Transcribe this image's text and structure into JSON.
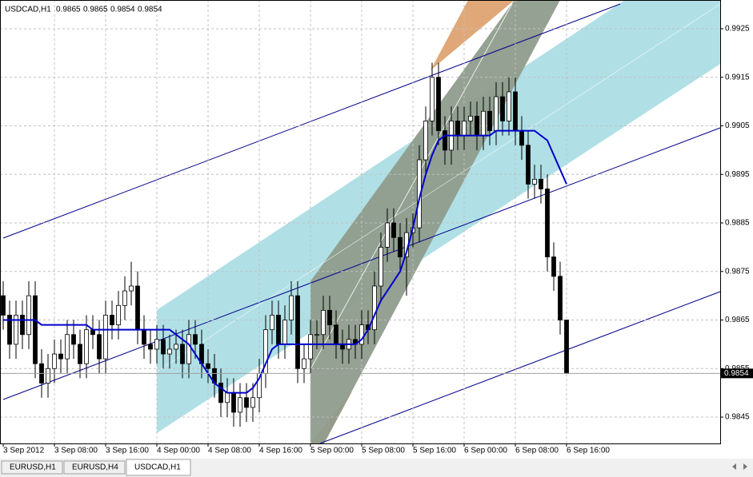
{
  "chart_data": {
    "type": "candlestick",
    "title": "USDCAD,H1",
    "categories": [
      "3 Sep 2012",
      null,
      null,
      null,
      null,
      null,
      null,
      null,
      "3 Sep 08:00",
      null,
      null,
      null,
      null,
      null,
      null,
      null,
      "3 Sep 16:00",
      null,
      null,
      null,
      null,
      null,
      null,
      null,
      "4 Sep 00:00",
      null,
      null,
      null,
      null,
      null,
      null,
      null,
      "4 Sep 08:00",
      null,
      null,
      null,
      null,
      null,
      null,
      null,
      "4 Sep 16:00",
      null,
      null,
      null,
      null,
      null,
      null,
      null,
      "5 Sep 00:00",
      null,
      null,
      null,
      null,
      null,
      null,
      null,
      "5 Sep 08:00",
      null,
      null,
      null,
      null,
      null,
      null,
      null,
      "5 Sep 16:00",
      null,
      null,
      null,
      null,
      null,
      null,
      null,
      "6 Sep 00:00",
      null,
      null,
      null,
      null,
      null,
      null,
      null,
      "6 Sep 08:00",
      null,
      null,
      null,
      null,
      null,
      null,
      null,
      "6 Sep 16:00"
    ],
    "open": [
      0.987,
      0.9866,
      0.986,
      0.9866,
      0.9862,
      0.987,
      0.9856,
      0.9852,
      0.9855,
      0.9858,
      0.9857,
      0.9862,
      0.986,
      0.9856,
      0.9863,
      0.9862,
      0.9857,
      0.9866,
      0.9864,
      0.9868,
      0.9871,
      0.9872,
      0.9863,
      0.986,
      0.9859,
      0.9861,
      0.9858,
      0.9859,
      0.986,
      0.9856,
      0.9862,
      0.986,
      0.9856,
      0.9855,
      0.9852,
      0.9848,
      0.985,
      0.9846,
      0.9849,
      0.9847,
      0.9849,
      0.9854,
      0.9863,
      0.9866,
      0.986,
      0.9865,
      0.987,
      0.9855,
      0.9857,
      0.9862,
      0.9862,
      0.9867,
      0.9864,
      0.986,
      0.9859,
      0.9861,
      0.986,
      0.9864,
      0.9863,
      0.9872,
      0.988,
      0.9885,
      0.9882,
      0.9878,
      0.9883,
      0.9884,
      0.9898,
      0.9906,
      0.9915,
      0.9904,
      0.99,
      0.9906,
      0.9903,
      0.9906,
      0.9907,
      0.9903,
      0.9908,
      0.9904,
      0.9911,
      0.9906,
      0.9912,
      0.9904,
      0.9901,
      0.9893,
      0.9894,
      0.9892,
      0.9878,
      0.9874,
      0.9865
    ],
    "high": [
      0.9873,
      0.9869,
      0.9869,
      0.9869,
      0.9873,
      0.9873,
      0.9859,
      0.9858,
      0.9861,
      0.9861,
      0.9865,
      0.9865,
      0.9863,
      0.9866,
      0.9866,
      0.9865,
      0.9869,
      0.9869,
      0.9871,
      0.9874,
      0.9877,
      0.9875,
      0.9866,
      0.9863,
      0.9864,
      0.9864,
      0.9862,
      0.9863,
      0.9863,
      0.9865,
      0.9865,
      0.9863,
      0.9859,
      0.9858,
      0.9855,
      0.9853,
      0.9853,
      0.9852,
      0.9852,
      0.9852,
      0.9857,
      0.9866,
      0.9869,
      0.9869,
      0.9868,
      0.9873,
      0.9873,
      0.986,
      0.9865,
      0.9865,
      0.987,
      0.987,
      0.9867,
      0.9863,
      0.9864,
      0.9864,
      0.9867,
      0.9867,
      0.9875,
      0.9883,
      0.9888,
      0.9888,
      0.9885,
      0.9886,
      0.9887,
      0.9901,
      0.9909,
      0.9918,
      0.9918,
      0.9907,
      0.9909,
      0.9909,
      0.9909,
      0.991,
      0.991,
      0.9911,
      0.9911,
      0.9914,
      0.9914,
      0.9915,
      0.9915,
      0.9907,
      0.9904,
      0.9897,
      0.9897,
      0.9895,
      0.9881,
      0.9877,
      0.9865
    ],
    "low": [
      0.9863,
      0.9857,
      0.9857,
      0.9859,
      0.9859,
      0.9853,
      0.9849,
      0.9849,
      0.9852,
      0.9854,
      0.9854,
      0.9857,
      0.9853,
      0.9853,
      0.9859,
      0.9854,
      0.9854,
      0.9861,
      0.9861,
      0.9865,
      0.9868,
      0.986,
      0.9857,
      0.9856,
      0.9856,
      0.9855,
      0.9855,
      0.9856,
      0.9853,
      0.9853,
      0.9857,
      0.9853,
      0.9852,
      0.9849,
      0.9845,
      0.9845,
      0.9843,
      0.9843,
      0.9844,
      0.9844,
      0.9846,
      0.9851,
      0.986,
      0.9857,
      0.9857,
      0.9862,
      0.9852,
      0.9852,
      0.9854,
      0.9859,
      0.9859,
      0.9861,
      0.9857,
      0.9856,
      0.9856,
      0.9857,
      0.9857,
      0.986,
      0.986,
      0.9869,
      0.9877,
      0.9879,
      0.9875,
      0.987,
      0.988,
      0.9881,
      0.9895,
      0.9903,
      0.9901,
      0.9897,
      0.9897,
      0.99,
      0.99,
      0.9903,
      0.99,
      0.99,
      0.9901,
      0.9901,
      0.9903,
      0.9903,
      0.9901,
      0.9898,
      0.989,
      0.989,
      0.9889,
      0.9875,
      0.9871,
      0.9862,
      0.9854
    ],
    "close": [
      0.9866,
      0.986,
      0.9866,
      0.9862,
      0.987,
      0.9856,
      0.9852,
      0.9855,
      0.9858,
      0.9857,
      0.9862,
      0.986,
      0.9856,
      0.9863,
      0.9862,
      0.9857,
      0.9866,
      0.9864,
      0.9868,
      0.9871,
      0.9872,
      0.9863,
      0.986,
      0.9859,
      0.9861,
      0.9858,
      0.9859,
      0.986,
      0.9856,
      0.9862,
      0.986,
      0.9856,
      0.9855,
      0.9852,
      0.9848,
      0.985,
      0.9846,
      0.9849,
      0.9847,
      0.9849,
      0.9854,
      0.9863,
      0.9866,
      0.986,
      0.9865,
      0.987,
      0.9855,
      0.9857,
      0.9862,
      0.9862,
      0.9867,
      0.9864,
      0.986,
      0.9859,
      0.9861,
      0.986,
      0.9864,
      0.9863,
      0.9872,
      0.988,
      0.9885,
      0.9882,
      0.9878,
      0.9883,
      0.9884,
      0.9898,
      0.9906,
      0.9915,
      0.9904,
      0.99,
      0.9906,
      0.9903,
      0.9906,
      0.9907,
      0.9903,
      0.9908,
      0.9904,
      0.9911,
      0.9906,
      0.9912,
      0.9904,
      0.9901,
      0.9893,
      0.9894,
      0.9892,
      0.9878,
      0.9874,
      0.9865,
      0.9854
    ],
    "ma": [
      0.9865,
      0.9865,
      0.9865,
      0.9865,
      0.9865,
      0.9865,
      0.9864,
      0.9864,
      0.9864,
      0.9864,
      0.9864,
      0.9864,
      0.9864,
      0.9864,
      0.9863,
      0.9863,
      0.9863,
      0.9863,
      0.9863,
      0.9863,
      0.9863,
      0.9863,
      0.9863,
      0.9863,
      0.9863,
      0.9863,
      0.9863,
      0.9862,
      0.9861,
      0.986,
      0.9858,
      0.9856,
      0.9854,
      0.9852,
      0.9851,
      0.985,
      0.985,
      0.985,
      0.985,
      0.9851,
      0.9853,
      0.9856,
      0.9859,
      0.986,
      0.986,
      0.986,
      0.986,
      0.986,
      0.986,
      0.986,
      0.986,
      0.986,
      0.986,
      0.986,
      0.986,
      0.986,
      0.9861,
      0.9863,
      0.9866,
      0.9869,
      0.9871,
      0.9873,
      0.9875,
      0.9879,
      0.9884,
      0.989,
      0.9895,
      0.9899,
      0.9902,
      0.9903,
      0.9903,
      0.9903,
      0.9903,
      0.9903,
      0.9903,
      0.9903,
      0.9903,
      0.9904,
      0.9904,
      0.9904,
      0.9904,
      0.9904,
      0.9904,
      0.9904,
      0.9903,
      0.9902,
      0.9899,
      0.9896,
      0.9893
    ],
    "ma_color": "#0000cc",
    "bull_color": "#ffffff",
    "bear_color": "#000000",
    "ylim": [
      0.984,
      0.9931
    ],
    "yticks": [
      0.9845,
      0.9855,
      0.9865,
      0.9875,
      0.9885,
      0.9895,
      0.9905,
      0.9915,
      0.9925
    ],
    "grid": true
  },
  "tabs": [
    "EURUSD,H1",
    "EURUSD,H4",
    "USDCAD,H1"
  ],
  "active_tab": 2
}
